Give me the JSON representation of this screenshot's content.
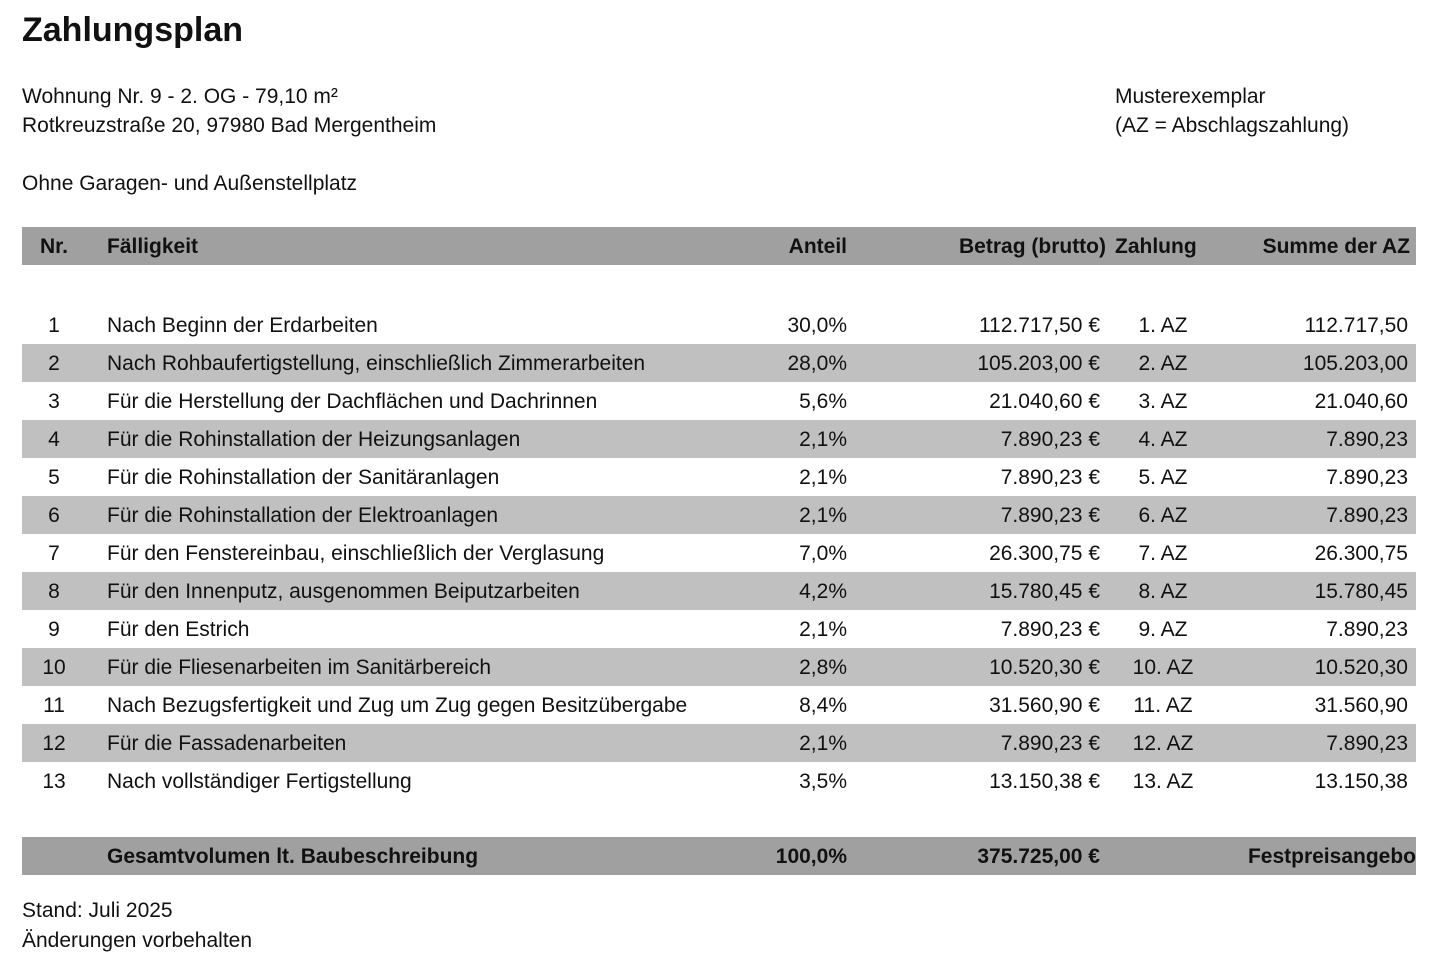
{
  "title": "Zahlungsplan",
  "info": {
    "line1": "Wohnung Nr. 9 - 2. OG - 79,10 m²",
    "line2": "Rotkreuzstraße 20, 97980 Bad Mergentheim",
    "line3": "Ohne Garagen- und Außenstellplatz",
    "right1": "Musterexemplar",
    "right2": "(AZ = Abschlagszahlung)"
  },
  "table": {
    "headers": {
      "nr": "Nr.",
      "desc": "Fälligkeit",
      "anteil": "Anteil",
      "betrag": "Betrag (brutto)",
      "zahlung": "Zahlung",
      "summe": "Summe der AZ"
    },
    "rows": [
      {
        "nr": "1",
        "desc": "Nach Beginn der Erdarbeiten",
        "anteil": "30,0%",
        "betrag": "112.717,50 €",
        "zahlung": "1. AZ",
        "summe": "112.717,50"
      },
      {
        "nr": "2",
        "desc": "Nach Rohbaufertigstellung, einschließlich Zimmerarbeiten",
        "anteil": "28,0%",
        "betrag": "105.203,00 €",
        "zahlung": "2. AZ",
        "summe": "105.203,00"
      },
      {
        "nr": "3",
        "desc": "Für die Herstellung der Dachflächen und Dachrinnen",
        "anteil": "5,6%",
        "betrag": "21.040,60 €",
        "zahlung": "3. AZ",
        "summe": "21.040,60"
      },
      {
        "nr": "4",
        "desc": "Für die Rohinstallation der Heizungsanlagen",
        "anteil": "2,1%",
        "betrag": "7.890,23 €",
        "zahlung": "4. AZ",
        "summe": "7.890,23"
      },
      {
        "nr": "5",
        "desc": "Für die Rohinstallation der Sanitäranlagen",
        "anteil": "2,1%",
        "betrag": "7.890,23 €",
        "zahlung": "5. AZ",
        "summe": "7.890,23"
      },
      {
        "nr": "6",
        "desc": "Für die Rohinstallation der Elektroanlagen",
        "anteil": "2,1%",
        "betrag": "7.890,23 €",
        "zahlung": "6. AZ",
        "summe": "7.890,23"
      },
      {
        "nr": "7",
        "desc": "Für den Fenstereinbau, einschließlich der Verglasung",
        "anteil": "7,0%",
        "betrag": "26.300,75 €",
        "zahlung": "7. AZ",
        "summe": "26.300,75"
      },
      {
        "nr": "8",
        "desc": "Für den Innenputz, ausgenommen Beiputzarbeiten",
        "anteil": "4,2%",
        "betrag": "15.780,45 €",
        "zahlung": "8. AZ",
        "summe": "15.780,45"
      },
      {
        "nr": "9",
        "desc": "Für den Estrich",
        "anteil": "2,1%",
        "betrag": "7.890,23 €",
        "zahlung": "9. AZ",
        "summe": "7.890,23"
      },
      {
        "nr": "10",
        "desc": "Für die Fliesenarbeiten im Sanitärbereich",
        "anteil": "2,8%",
        "betrag": "10.520,30 €",
        "zahlung": "10. AZ",
        "summe": "10.520,30"
      },
      {
        "nr": "11",
        "desc": "Nach Bezugsfertigkeit und Zug um Zug gegen Besitzübergabe",
        "anteil": "8,4%",
        "betrag": "31.560,90 €",
        "zahlung": "11. AZ",
        "summe": "31.560,90"
      },
      {
        "nr": "12",
        "desc": "Für die Fassadenarbeiten",
        "anteil": "2,1%",
        "betrag": "7.890,23 €",
        "zahlung": "12. AZ",
        "summe": "7.890,23"
      },
      {
        "nr": "13",
        "desc": "Nach vollständiger Fertigstellung",
        "anteil": "3,5%",
        "betrag": "13.150,38 €",
        "zahlung": "13. AZ",
        "summe": "13.150,38"
      }
    ],
    "total": {
      "desc": "Gesamtvolumen lt.  Baubeschreibung",
      "anteil": "100,0%",
      "betrag": "375.725,00 €",
      "summe": "Festpreisangebo"
    }
  },
  "footer": {
    "line1": "Stand: Juli 2025",
    "line2": "Änderungen vorbehalten"
  }
}
